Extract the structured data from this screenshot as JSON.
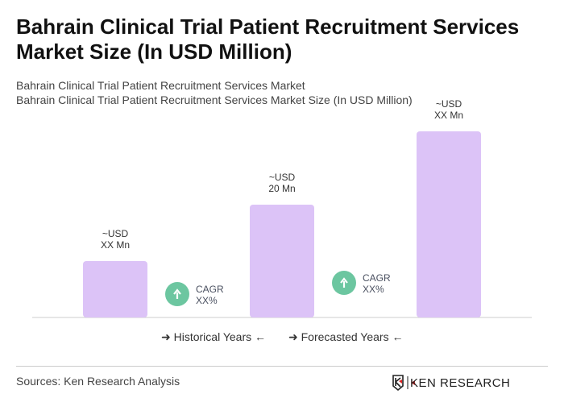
{
  "title": "Bahrain Clinical Trial Patient Recruitment Services Market Size (In USD Million)",
  "subtitle1": "Bahrain Clinical Trial Patient Recruitment Services Market",
  "subtitle2": "Bahrain Clinical Trial Patient Recruitment Services Market Size (In USD Million)",
  "chart_data": {
    "type": "bar",
    "categories": [
      "",
      "",
      ""
    ],
    "values": [
      10,
      20,
      33
    ],
    "data_labels": [
      [
        "~USD",
        "XX Mn"
      ],
      [
        "~USD",
        "20 Mn"
      ],
      [
        "~USD",
        "XX Mn"
      ]
    ],
    "cagr_labels": [
      [
        "CAGR",
        "XX%"
      ],
      [
        "CAGR",
        "XX%"
      ]
    ],
    "bar_color": "#dcc3f7",
    "cagr_color": "#6cc6a0",
    "grid": false
  },
  "legend": {
    "historical": "Historical Years",
    "forecasted": "Forecasted Years"
  },
  "footer": {
    "source": "Sources: Ken Research Analysis",
    "logo_text": "KEN RESEARCH"
  }
}
